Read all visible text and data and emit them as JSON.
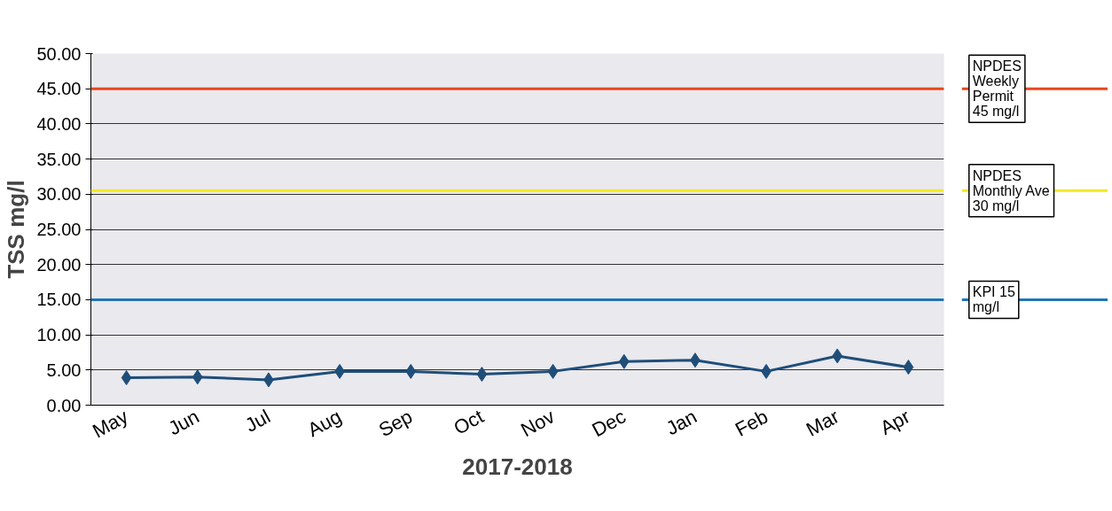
{
  "chart_data": {
    "type": "line",
    "xlabel": "2017-2018",
    "ylabel": "TSS mg/l",
    "categories": [
      "May",
      "Jun",
      "Jul",
      "Aug",
      "Sep",
      "Oct",
      "Nov",
      "Dec",
      "Jan",
      "Feb",
      "Mar",
      "Apr"
    ],
    "series": [
      {
        "color": "#1f4e79",
        "values": [
          3.9,
          4.0,
          3.6,
          4.8,
          4.8,
          4.4,
          4.8,
          6.2,
          6.4,
          4.8,
          7.0,
          5.4
        ]
      }
    ],
    "marker": "diamond",
    "line_style": "solid",
    "ylim": [
      0,
      50
    ],
    "yticks": [
      {
        "value": 0,
        "label": "0.00"
      },
      {
        "value": 5,
        "label": "5.00"
      },
      {
        "value": 10,
        "label": "10.00"
      },
      {
        "value": 15,
        "label": "15.00"
      },
      {
        "value": 20,
        "label": "20.00"
      },
      {
        "value": 25,
        "label": "25.00"
      },
      {
        "value": 30,
        "label": "30.00"
      },
      {
        "value": 35,
        "label": "35.00"
      },
      {
        "value": 40,
        "label": "40.00"
      },
      {
        "value": 45,
        "label": "45.00"
      },
      {
        "value": 50,
        "label": "50.00"
      }
    ],
    "grid": "y",
    "ref_lines": [
      {
        "axis": "y",
        "value": 45,
        "label": "NPDES\nWeekly\nPermit\n45 mg/l",
        "color": "#e8461c"
      },
      {
        "axis": "y",
        "value": 30.5,
        "label": "NPDES\nMonthly Ave\n30 mg/l",
        "color": "#f2e925"
      },
      {
        "axis": "y",
        "value": 15,
        "label": "KPI 15\nmg/l",
        "color": "#2275b5"
      }
    ]
  }
}
